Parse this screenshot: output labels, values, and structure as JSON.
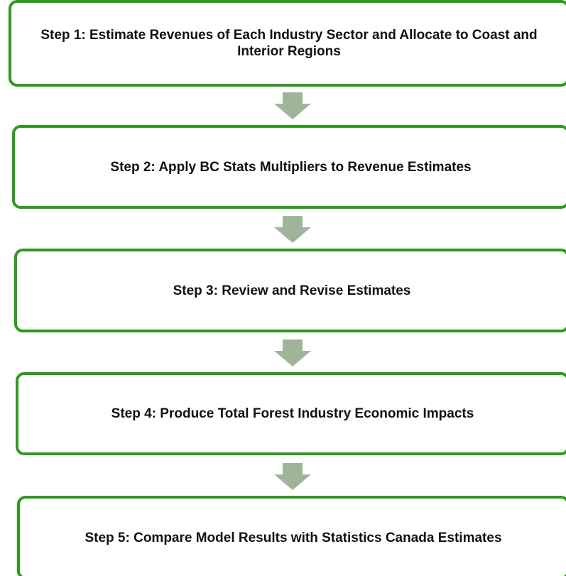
{
  "nodes": [
    {
      "label": "Step 1: Estimate Revenues of Each Industry Sector and Allocate to Coast and Interior Regions"
    },
    {
      "label": "Step 2: Apply BC Stats Multipliers to Revenue Estimates"
    },
    {
      "label": "Step 3: Review and Revise Estimates"
    },
    {
      "label": "Step 4: Produce Total Forest Industry Economic Impacts"
    },
    {
      "label": "Step 5: Compare Model Results with Statistics Canada Estimates"
    }
  ]
}
